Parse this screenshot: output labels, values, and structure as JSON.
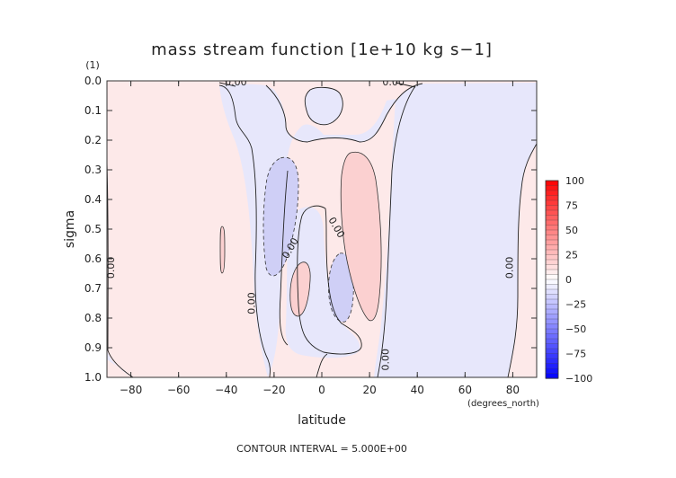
{
  "chart_data": {
    "type": "heatmap",
    "title": "mass stream function [1e+10 kg s−1]",
    "xlabel": "latitude",
    "x_unit": "(degrees_north)",
    "ylabel": "sigma",
    "y_unit": "(1)",
    "xlim": [
      -90,
      90
    ],
    "ylim": [
      0.0,
      1.0
    ],
    "x_ticks": [
      -80,
      -60,
      -40,
      -20,
      0,
      20,
      40,
      60,
      80
    ],
    "x_tick_labels": [
      "−80",
      "−60",
      "−40",
      "−20",
      "0",
      "20",
      "40",
      "60",
      "80"
    ],
    "y_ticks": [
      0.0,
      0.1,
      0.2,
      0.3,
      0.4,
      0.5,
      0.6,
      0.7,
      0.8,
      0.9,
      1.0
    ],
    "y_tick_labels": [
      "0.0",
      "0.1",
      "0.2",
      "0.3",
      "0.4",
      "0.5",
      "0.6",
      "0.7",
      "0.8",
      "0.9",
      "1.0"
    ],
    "footer": "CONTOUR INTERVAL = 5.000E+00",
    "colorbar": {
      "min": -100,
      "max": 100,
      "labels": [
        "100",
        "75",
        "50",
        "25",
        "0",
        "−25",
        "−50",
        "−75",
        "−100"
      ],
      "label_values": [
        100,
        75,
        50,
        25,
        0,
        -25,
        -50,
        -75,
        -100
      ],
      "colors": {
        "negative": "#0000ff",
        "zero": "#ffffff",
        "positive": "#ff0000"
      }
    },
    "contour_labels": [
      {
        "text": "0.00",
        "lat": -36,
        "sigma": 0.0
      },
      {
        "text": "0.00",
        "lat": 30,
        "sigma": 0.0
      },
      {
        "text": "0.00",
        "lat": -87,
        "sigma": 0.63
      },
      {
        "text": "0.00",
        "lat": -28,
        "sigma": 0.75
      },
      {
        "text": "0.00",
        "lat": -12,
        "sigma": 0.57
      },
      {
        "text": "0.00",
        "lat": 5,
        "sigma": 0.5
      },
      {
        "text": "0.00",
        "lat": 28,
        "sigma": 0.94
      },
      {
        "text": "0.00",
        "lat": 80,
        "sigma": 0.63
      }
    ]
  }
}
